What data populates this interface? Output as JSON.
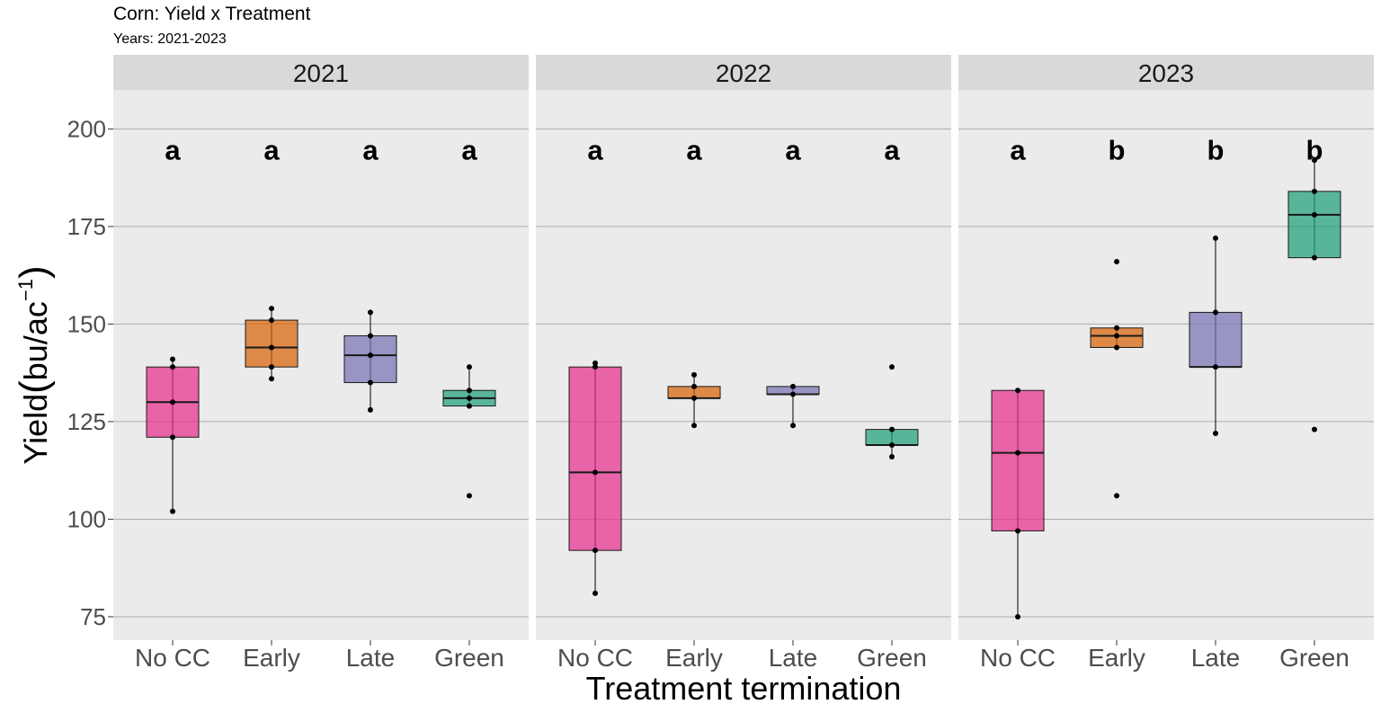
{
  "chart_data": {
    "type": "box",
    "title": "Corn: Yield x Treatment",
    "subtitle": "Years: 2021-2023",
    "xlabel": "Treatment termination",
    "ylabel": {
      "base": "Yield",
      "unit_main": "bu",
      "unit_denom": "ac",
      "exponent": "−1"
    },
    "ylim": [
      69,
      210
    ],
    "yticks": [
      75,
      100,
      125,
      150,
      175,
      200
    ],
    "grid": true,
    "legend": "none",
    "categories": [
      "No CC",
      "Early",
      "Late",
      "Green"
    ],
    "colors": {
      "No CC": "#E7298A",
      "Early": "#D95F02",
      "Late": "#7570B3",
      "Green": "#1B9E77"
    },
    "letter_y": 194,
    "panels": [
      {
        "label": "2021",
        "groups": [
          {
            "category": "No CC",
            "q1": 121,
            "median": 130,
            "q3": 139,
            "low": 102,
            "high": 141,
            "points": [
              102,
              121,
              130,
              139,
              141
            ],
            "letter": "a"
          },
          {
            "category": "Early",
            "q1": 139,
            "median": 144,
            "q3": 151,
            "low": 136,
            "high": 154,
            "points": [
              136,
              139,
              144,
              151,
              154
            ],
            "letter": "a"
          },
          {
            "category": "Late",
            "q1": 135,
            "median": 142,
            "q3": 147,
            "low": 128,
            "high": 153,
            "points": [
              128,
              135,
              142,
              147,
              153
            ],
            "letter": "a"
          },
          {
            "category": "Green",
            "q1": 129,
            "median": 131,
            "q3": 133,
            "low": 129,
            "high": 139,
            "points": [
              106,
              129,
              131,
              133,
              139
            ],
            "letter": "a"
          }
        ]
      },
      {
        "label": "2022",
        "groups": [
          {
            "category": "No CC",
            "q1": 92,
            "median": 112,
            "q3": 139,
            "low": 81,
            "high": 140,
            "points": [
              81,
              92,
              112,
              139,
              140
            ],
            "letter": "a"
          },
          {
            "category": "Early",
            "q1": 131,
            "median": 131,
            "q3": 134,
            "low": 124,
            "high": 137,
            "points": [
              124,
              131,
              134,
              137
            ],
            "letter": "a"
          },
          {
            "category": "Late",
            "q1": 132,
            "median": 132,
            "q3": 134,
            "low": 124,
            "high": 134,
            "points": [
              124,
              132,
              134
            ],
            "letter": "a"
          },
          {
            "category": "Green",
            "q1": 119,
            "median": 119,
            "q3": 123,
            "low": 116,
            "high": 123,
            "points": [
              116,
              119,
              123,
              139
            ],
            "letter": "a"
          }
        ]
      },
      {
        "label": "2023",
        "groups": [
          {
            "category": "No CC",
            "q1": 97,
            "median": 117,
            "q3": 133,
            "low": 75,
            "high": 133,
            "points": [
              75,
              97,
              117,
              133
            ],
            "letter": "a"
          },
          {
            "category": "Early",
            "q1": 144,
            "median": 147,
            "q3": 149,
            "low": 144,
            "high": 149,
            "points": [
              106,
              144,
              147,
              149,
              166
            ],
            "letter": "b"
          },
          {
            "category": "Late",
            "q1": 139,
            "median": 139,
            "q3": 153,
            "low": 122,
            "high": 172,
            "points": [
              122,
              139,
              153,
              172
            ],
            "letter": "b"
          },
          {
            "category": "Green",
            "q1": 167,
            "median": 178,
            "q3": 184,
            "low": 167,
            "high": 192,
            "points": [
              123,
              167,
              178,
              184,
              192
            ],
            "letter": "b"
          }
        ]
      }
    ]
  }
}
